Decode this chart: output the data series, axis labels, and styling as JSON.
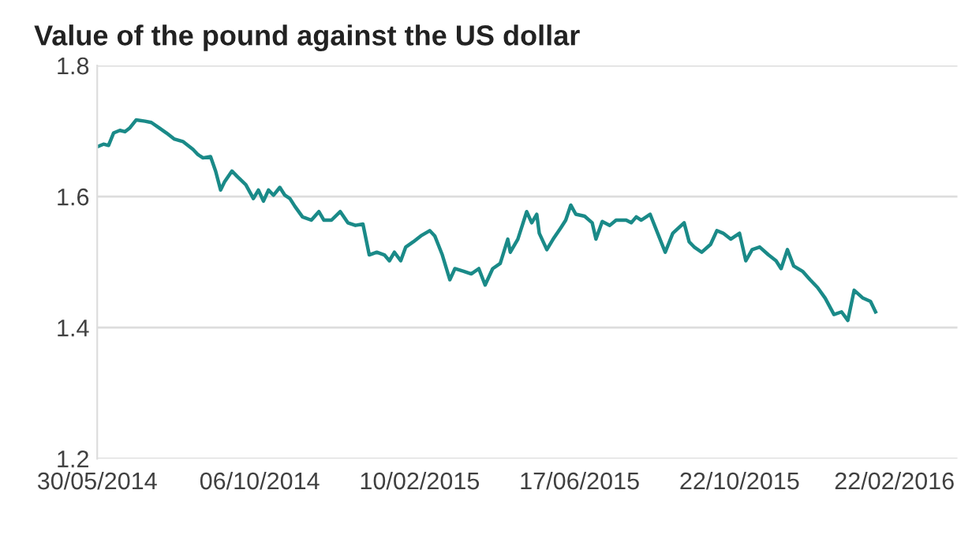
{
  "chart_data": {
    "type": "line",
    "title": "Value of the pound against the US dollar",
    "x": [
      "2014-05-30",
      "2014-06-04",
      "2014-06-08",
      "2014-06-12",
      "2014-06-17",
      "2014-06-21",
      "2014-06-25",
      "2014-06-30",
      "2014-07-07",
      "2014-07-12",
      "2014-07-18",
      "2014-07-24",
      "2014-07-30",
      "2014-08-06",
      "2014-08-10",
      "2014-08-14",
      "2014-08-18",
      "2014-08-22",
      "2014-08-28",
      "2014-09-01",
      "2014-09-05",
      "2014-09-08",
      "2014-09-14",
      "2014-09-18",
      "2014-09-25",
      "2014-10-01",
      "2014-10-05",
      "2014-10-09",
      "2014-10-13",
      "2014-10-17",
      "2014-10-22",
      "2014-10-26",
      "2014-10-30",
      "2014-11-03",
      "2014-11-09",
      "2014-11-16",
      "2014-11-22",
      "2014-11-26",
      "2014-12-02",
      "2014-12-09",
      "2014-12-15",
      "2014-12-21",
      "2014-12-27",
      "2015-01-01",
      "2015-01-07",
      "2015-01-13",
      "2015-01-17",
      "2015-01-21",
      "2015-01-26",
      "2015-01-30",
      "2015-02-05",
      "2015-02-11",
      "2015-02-18",
      "2015-02-22",
      "2015-02-28",
      "2015-03-06",
      "2015-03-10",
      "2015-03-17",
      "2015-03-23",
      "2015-03-29",
      "2015-04-03",
      "2015-04-09",
      "2015-04-15",
      "2015-04-21",
      "2015-04-23",
      "2015-04-29",
      "2015-05-06",
      "2015-05-10",
      "2015-05-14",
      "2015-05-16",
      "2015-05-22",
      "2015-05-27",
      "2015-06-02",
      "2015-06-06",
      "2015-06-10",
      "2015-06-14",
      "2015-06-21",
      "2015-06-27",
      "2015-06-30",
      "2015-07-05",
      "2015-07-11",
      "2015-07-16",
      "2015-07-24",
      "2015-07-28",
      "2015-08-01",
      "2015-08-05",
      "2015-08-12",
      "2015-08-18",
      "2015-08-24",
      "2015-08-30",
      "2015-09-08",
      "2015-09-12",
      "2015-09-16",
      "2015-09-22",
      "2015-09-29",
      "2015-10-04",
      "2015-10-09",
      "2015-10-15",
      "2015-10-22",
      "2015-10-27",
      "2015-11-01",
      "2015-11-07",
      "2015-11-14",
      "2015-11-20",
      "2015-11-24",
      "2015-11-29",
      "2015-12-04",
      "2015-12-11",
      "2015-12-17",
      "2015-12-23",
      "2015-12-29",
      "2016-01-05",
      "2016-01-11",
      "2016-01-16",
      "2016-01-21",
      "2016-01-28",
      "2016-02-03",
      "2016-02-07"
    ],
    "series": [
      {
        "color": "#1a8a88",
        "values": [
          1.676,
          1.68,
          1.678,
          1.697,
          1.701,
          1.699,
          1.705,
          1.717,
          1.715,
          1.713,
          1.705,
          1.697,
          1.688,
          1.684,
          1.678,
          1.672,
          1.664,
          1.659,
          1.661,
          1.639,
          1.61,
          1.622,
          1.639,
          1.631,
          1.618,
          1.597,
          1.61,
          1.593,
          1.61,
          1.602,
          1.614,
          1.602,
          1.597,
          1.585,
          1.569,
          1.564,
          1.577,
          1.564,
          1.564,
          1.577,
          1.56,
          1.556,
          1.558,
          1.511,
          1.515,
          1.511,
          1.502,
          1.515,
          1.502,
          1.523,
          1.531,
          1.54,
          1.548,
          1.54,
          1.511,
          1.473,
          1.49,
          1.486,
          1.482,
          1.49,
          1.465,
          1.49,
          1.498,
          1.535,
          1.515,
          1.535,
          1.577,
          1.56,
          1.573,
          1.544,
          1.519,
          1.535,
          1.552,
          1.564,
          1.587,
          1.573,
          1.57,
          1.56,
          1.535,
          1.562,
          1.556,
          1.564,
          1.564,
          1.56,
          1.569,
          1.564,
          1.573,
          1.544,
          1.515,
          1.544,
          1.56,
          1.531,
          1.523,
          1.515,
          1.527,
          1.548,
          1.544,
          1.535,
          1.544,
          1.502,
          1.519,
          1.523,
          1.511,
          1.502,
          1.49,
          1.519,
          1.494,
          1.486,
          1.473,
          1.461,
          1.445,
          1.42,
          1.424,
          1.411,
          1.457,
          1.445,
          1.44,
          1.424
        ]
      }
    ],
    "xlim": [
      "2014-05-30",
      "2016-04-12"
    ],
    "xticks": [
      {
        "value": "2014-05-30",
        "label": "30/05/2014"
      },
      {
        "value": "2014-10-06",
        "label": "06/10/2014"
      },
      {
        "value": "2015-02-10",
        "label": "10/02/2015"
      },
      {
        "value": "2015-06-17",
        "label": "17/06/2015"
      },
      {
        "value": "2015-10-22",
        "label": "22/10/2015"
      },
      {
        "value": "2016-02-22",
        "label": "22/02/2016"
      }
    ],
    "ylim": [
      1.2,
      1.8
    ],
    "yticks": [
      1.2,
      1.4,
      1.6,
      1.8
    ],
    "grid": "y",
    "marker": "none",
    "line_style": "solid"
  }
}
